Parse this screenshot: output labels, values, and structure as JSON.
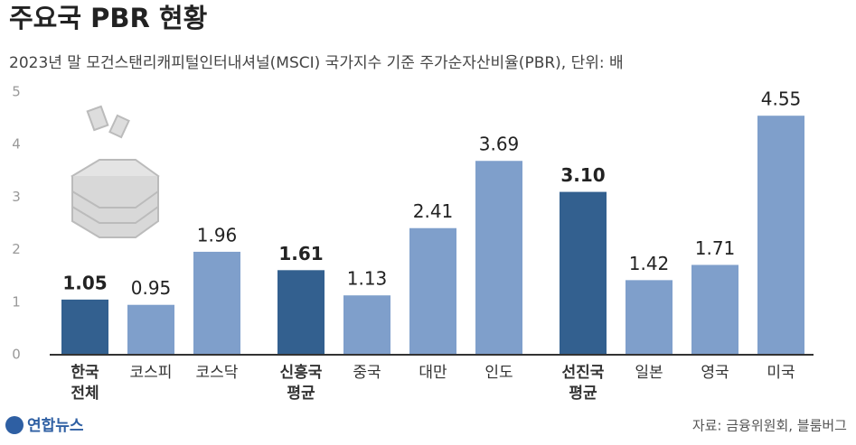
{
  "chart_data": {
    "type": "bar",
    "title": "주요국 PBR 현황",
    "subtitle": "2023년 말 모건스탠리캐피털인터내셔널(MSCI) 국가지수 기준 주가순자산비율(PBR), 단위: 배",
    "source": "자료: 금융위원회, 블룸버그",
    "logo": "연합뉴스",
    "categories": [
      "한국\n전체",
      "코스피",
      "코스닥",
      "신흥국\n평균",
      "중국",
      "대만",
      "인도",
      "선진국\n평균",
      "일본",
      "영국",
      "미국"
    ],
    "values": [
      1.05,
      0.95,
      1.96,
      1.61,
      1.13,
      2.41,
      3.69,
      3.1,
      1.42,
      1.71,
      4.55
    ],
    "value_labels": [
      "1.05",
      "0.95",
      "1.96",
      "1.61",
      "1.13",
      "2.41",
      "3.69",
      "3.10",
      "1.42",
      "1.71",
      "4.55"
    ],
    "colors": [
      "#33608f",
      "#7f9fcb",
      "#7f9fcb",
      "#33608f",
      "#7f9fcb",
      "#7f9fcb",
      "#7f9fcb",
      "#33608f",
      "#7f9fcb",
      "#7f9fcb",
      "#7f9fcb"
    ],
    "emphasis": [
      true,
      false,
      false,
      true,
      false,
      false,
      false,
      true,
      false,
      false,
      false
    ],
    "ylim": [
      0,
      5
    ],
    "yticks": [
      0,
      1,
      2,
      3,
      4,
      5
    ],
    "grid": false
  }
}
